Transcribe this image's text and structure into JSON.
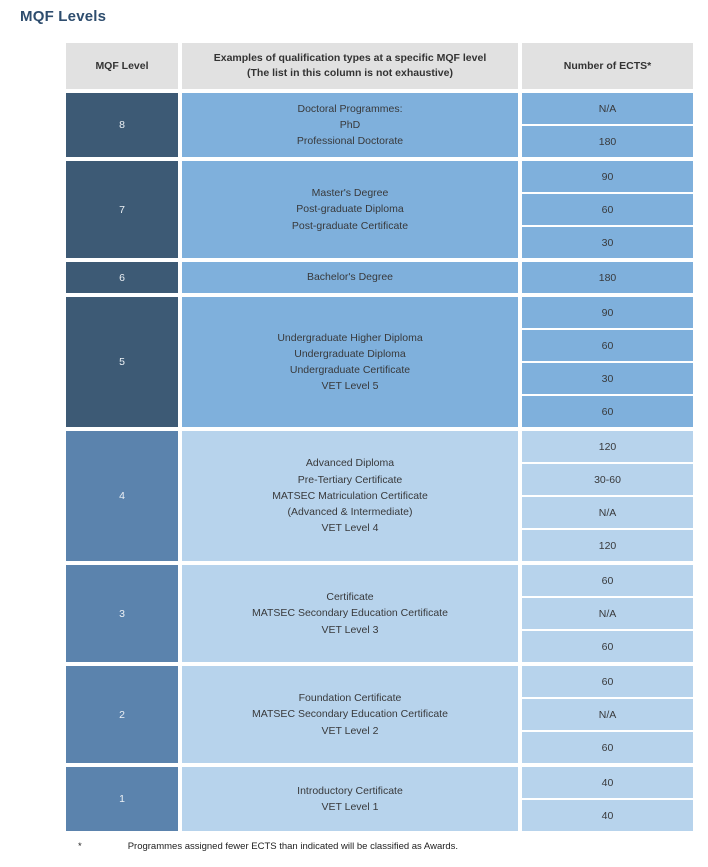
{
  "page": {
    "title": "MQF Levels"
  },
  "table": {
    "headers": {
      "level": "MQF Level",
      "examples_line1": "Examples of qualification types at a specific MQF level",
      "examples_line2": "(The list in this column is not exhaustive)",
      "ects": "Number of ECTS*"
    },
    "groups": [
      {
        "level": "8",
        "tone": "dark",
        "examples": [
          "Doctoral Programmes:",
          "PhD",
          "Professional Doctorate"
        ],
        "ects": [
          "N/A",
          "180"
        ]
      },
      {
        "level": "7",
        "tone": "dark",
        "examples": [
          "Master's Degree",
          "Post-graduate Diploma",
          "Post-graduate Certificate"
        ],
        "ects": [
          "90",
          "60",
          "30"
        ]
      },
      {
        "level": "6",
        "tone": "dark",
        "examples": [
          "Bachelor's Degree"
        ],
        "ects": [
          "180"
        ]
      },
      {
        "level": "5",
        "tone": "dark",
        "examples": [
          "Undergraduate Higher Diploma",
          "Undergraduate Diploma",
          "Undergraduate Certificate",
          "VET Level 5"
        ],
        "ects": [
          "90",
          "60",
          "30",
          "60"
        ]
      },
      {
        "level": "4",
        "tone": "light",
        "examples": [
          "Advanced Diploma",
          "Pre-Tertiary Certificate",
          "MATSEC Matriculation Certificate",
          "(Advanced & Intermediate)",
          "VET Level 4"
        ],
        "ects": [
          "120",
          "30-60",
          "N/A",
          "120"
        ]
      },
      {
        "level": "3",
        "tone": "light",
        "examples": [
          "Certificate",
          "MATSEC Secondary Education Certificate",
          "VET Level 3"
        ],
        "ects": [
          "60",
          "N/A",
          "60"
        ]
      },
      {
        "level": "2",
        "tone": "light",
        "examples": [
          "Foundation Certificate",
          "MATSEC Secondary Education Certificate",
          "VET Level 2"
        ],
        "ects": [
          "60",
          "N/A",
          "60"
        ]
      },
      {
        "level": "1",
        "tone": "light",
        "examples": [
          "Introductory Certificate",
          "VET Level 1"
        ],
        "ects": [
          "40",
          "40"
        ]
      }
    ],
    "footnote": {
      "marker": "*",
      "text": "Programmes assigned fewer ECTS than indicated will be classified as Awards."
    }
  },
  "colors": {
    "title_text": "#2e4d6e",
    "header_bg": "#e1e1e1",
    "header_text": "#333333",
    "cell_text": "#38393b",
    "level_text": "#edf1f5",
    "dark_level_bg": "#3d5a75",
    "dark_example_bg": "#7fb0dc",
    "light_level_bg": "#5b83ad",
    "light_example_bg": "#b7d3ec",
    "grid_gap": "#ffffff"
  }
}
